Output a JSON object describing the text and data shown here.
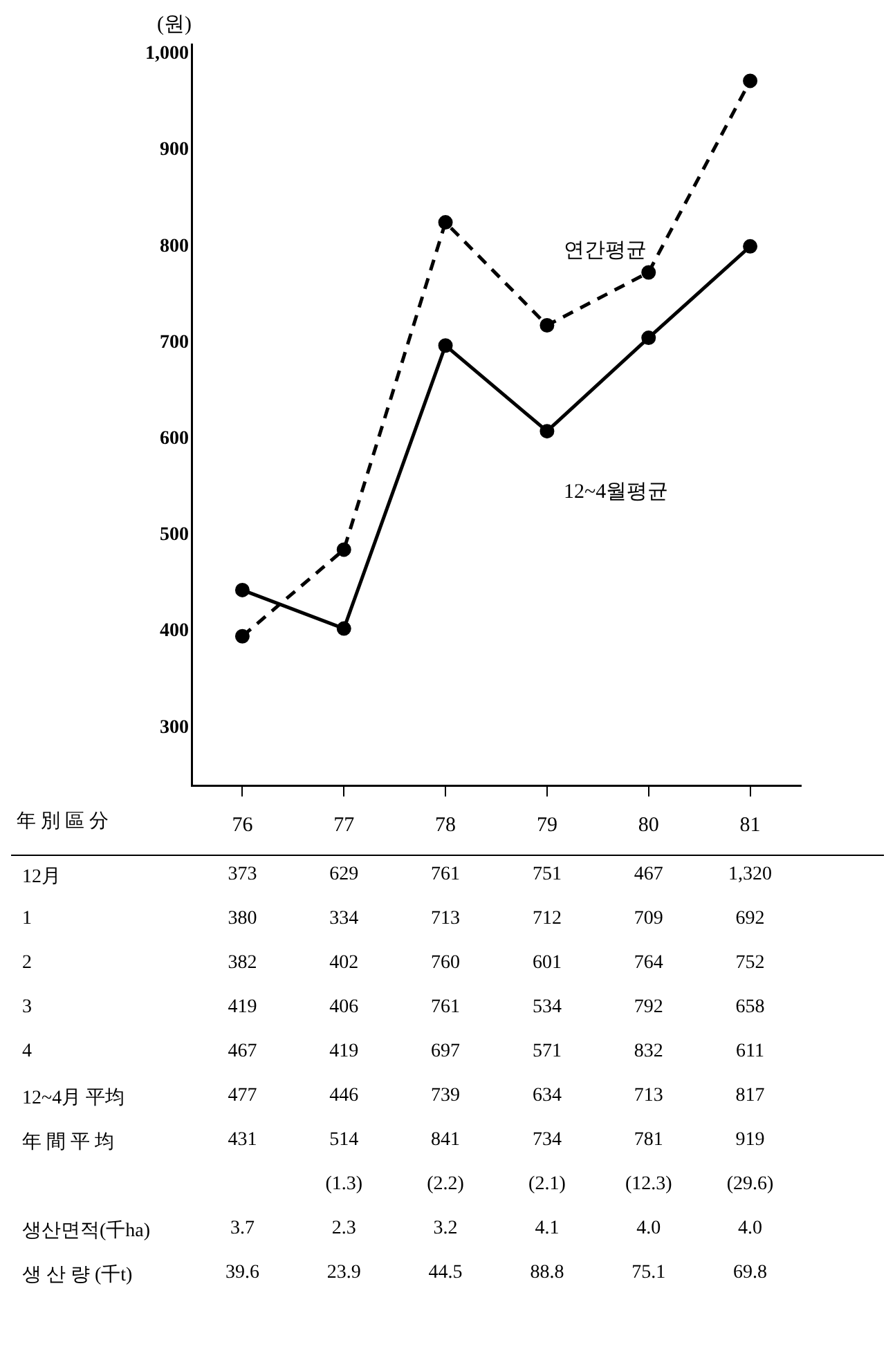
{
  "chart_data": {
    "type": "line",
    "ylabel": "(원)",
    "xlabel": "年 別 區 分",
    "categories": [
      "76",
      "77",
      "78",
      "79",
      "80",
      "81"
    ],
    "series": [
      {
        "name": "연간평균",
        "color": "#000000",
        "line_style": "dashed",
        "values": [
          395,
          485,
          825,
          718,
          773,
          972
        ]
      },
      {
        "name": "12~4월평균",
        "color": "#000000",
        "line_style": "solid",
        "values": [
          443,
          403,
          697,
          608,
          705,
          800
        ]
      }
    ],
    "ylim": [
      240,
      1010
    ],
    "yticks": [
      300,
      400,
      500,
      600,
      700,
      800,
      900,
      {
        "value": 1000,
        "label": "1,000"
      }
    ],
    "marker": "circle",
    "legend": false,
    "annotations": [
      "12月 373 629 761 751 467 1,320",
      "1 380 334 713 712 709 692",
      "2 382 402 760 601 764 752",
      "3 419 406 761 534 792 658",
      "4 467 419 697 571 832 611",
      "12~4月 平均 477 446 739 634 713 817",
      "年 間 平 均 431 514 841 734 781 919",
      "(1.3) (2.2) (2.1) (12.3) (29.6)",
      "생산면적(千ha) 3.7 2.3 3.2 4.1 4.0 4.0",
      "생 산 량 (千t) 39.6 23.9 44.5 88.8 75.1 69.8"
    ]
  }
}
